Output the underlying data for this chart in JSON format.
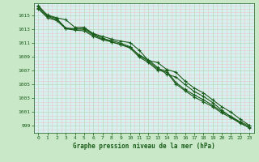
{
  "title": "Graphe pression niveau de la mer (hPa)",
  "bg_color": "#c8e8c8",
  "plot_bg_color": "#d8f0f0",
  "grid_color_major": "#b8d8b8",
  "grid_color_minor": "#e8c8c8",
  "line_color": "#1a5c1a",
  "text_color": "#1a5c1a",
  "xlim": [
    -0.5,
    23.5
  ],
  "ylim": [
    998.0,
    1016.8
  ],
  "yticks": [
    999,
    1001,
    1003,
    1005,
    1007,
    1009,
    1011,
    1013,
    1015
  ],
  "xticks": [
    0,
    1,
    2,
    3,
    4,
    5,
    6,
    7,
    8,
    9,
    10,
    11,
    12,
    13,
    14,
    15,
    16,
    17,
    18,
    19,
    20,
    21,
    22,
    23
  ],
  "series": [
    [
      1016.5,
      1015.0,
      1014.6,
      1013.2,
      1013.0,
      1013.2,
      1012.3,
      1011.8,
      1011.2,
      1010.8,
      1010.4,
      1009.3,
      1008.6,
      1007.5,
      1006.5,
      1006.1,
      1005.0,
      1004.0,
      1003.3,
      1002.4,
      1001.3,
      1000.3,
      999.5,
      998.7
    ],
    [
      1016.3,
      1015.1,
      1014.7,
      1014.4,
      1013.3,
      1013.3,
      1012.4,
      1012.0,
      1011.6,
      1011.3,
      1011.1,
      1010.0,
      1008.5,
      1008.2,
      1007.2,
      1006.8,
      1005.5,
      1004.5,
      1003.8,
      1002.8,
      1001.8,
      1001.0,
      1000.0,
      999.1
    ],
    [
      1016.1,
      1014.9,
      1014.4,
      1013.2,
      1013.1,
      1013.0,
      1012.2,
      1011.6,
      1011.4,
      1011.0,
      1010.5,
      1009.2,
      1008.4,
      1007.3,
      1007.0,
      1005.3,
      1004.3,
      1003.5,
      1002.8,
      1002.0,
      1001.1,
      1000.4,
      999.6,
      999.0
    ],
    [
      1016.0,
      1014.7,
      1014.3,
      1013.1,
      1012.9,
      1012.8,
      1012.0,
      1011.5,
      1011.2,
      1010.8,
      1010.3,
      1009.0,
      1008.2,
      1007.1,
      1006.8,
      1005.1,
      1004.1,
      1003.2,
      1002.5,
      1001.8,
      1000.9,
      1000.2,
      999.4,
      998.8
    ]
  ]
}
